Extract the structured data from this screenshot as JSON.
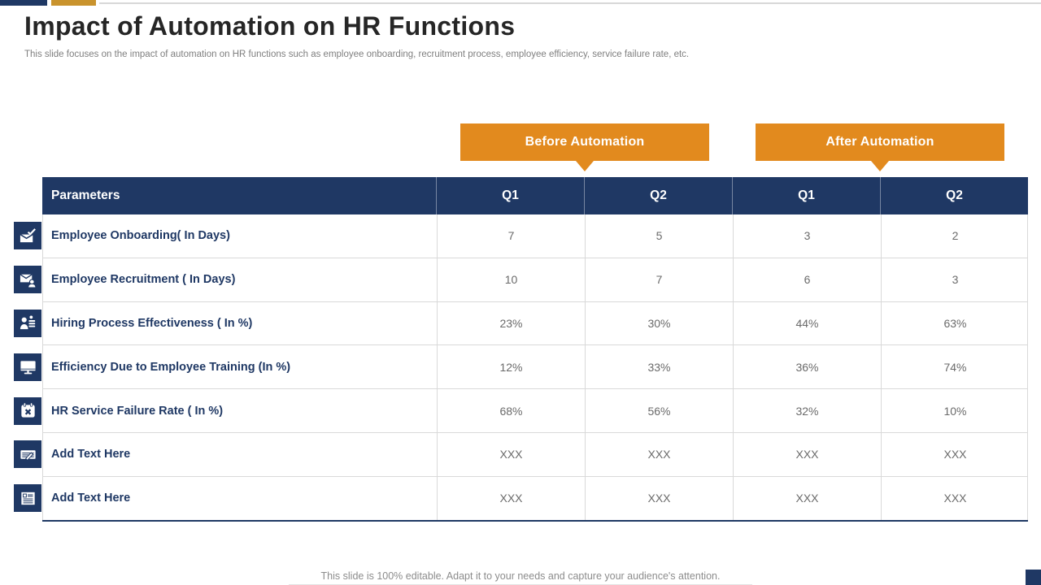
{
  "slide": {
    "title": "Impact of Automation on HR Functions",
    "subtitle": "This slide focuses on the impact of automation on HR functions such as employee onboarding, recruitment process, employee efficiency, service failure rate, etc.",
    "footer": "This slide is 100% editable. Adapt it to your needs and capture your audience's attention."
  },
  "colors": {
    "navy": "#1F3864",
    "orange": "#E28A1E",
    "gold": "#C9932D",
    "grid_line": "#D9D9D9",
    "value_text": "#6A6A6A"
  },
  "callouts": [
    {
      "label": "Before Automation"
    },
    {
      "label": "After Automation"
    }
  ],
  "table": {
    "header": [
      "Parameters",
      "Q1",
      "Q2",
      "Q1",
      "Q2"
    ],
    "rows": [
      {
        "icon": "onboarding-envelope-check-icon",
        "label": "Employee Onboarding( In Days)",
        "values": [
          "7",
          "5",
          "3",
          "2"
        ]
      },
      {
        "icon": "recruitment-envelope-person-icon",
        "label": "Employee Recruitment ( In Days)",
        "values": [
          "10",
          "7",
          "6",
          "3"
        ]
      },
      {
        "icon": "hiring-person-coins-icon",
        "label": "Hiring Process Effectiveness ( In %)",
        "values": [
          "23%",
          "30%",
          "44%",
          "63%"
        ]
      },
      {
        "icon": "training-monitor-icon",
        "label": "Efficiency Due to Employee Training (In %)",
        "values": [
          "12%",
          "33%",
          "36%",
          "74%"
        ]
      },
      {
        "icon": "failure-calendar-x-icon",
        "label": "HR Service Failure Rate ( In %)",
        "values": [
          "68%",
          "56%",
          "32%",
          "10%"
        ]
      },
      {
        "icon": "signature-pen-icon",
        "label": "Add Text Here",
        "values": [
          "XXX",
          "XXX",
          "XXX",
          "XXX"
        ]
      },
      {
        "icon": "document-lines-icon",
        "label": "Add Text Here",
        "values": [
          "XXX",
          "XXX",
          "XXX",
          "XXX"
        ]
      }
    ]
  },
  "chart_data": {
    "type": "table",
    "title": "Impact of Automation on HR Functions",
    "categories": [
      "Before Automation Q1",
      "Before Automation Q2",
      "After Automation Q1",
      "After Automation Q2"
    ],
    "series": [
      {
        "name": "Employee Onboarding( In Days)",
        "values": [
          7,
          5,
          3,
          2
        ]
      },
      {
        "name": "Employee Recruitment ( In Days)",
        "values": [
          10,
          7,
          6,
          3
        ]
      },
      {
        "name": "Hiring Process Effectiveness ( In %)",
        "values": [
          "23%",
          "30%",
          "44%",
          "63%"
        ]
      },
      {
        "name": "Efficiency Due to Employee Training (In %)",
        "values": [
          "12%",
          "33%",
          "36%",
          "74%"
        ]
      },
      {
        "name": "HR Service Failure Rate ( In %)",
        "values": [
          "68%",
          "56%",
          "32%",
          "10%"
        ]
      },
      {
        "name": "Add Text Here",
        "values": [
          "XXX",
          "XXX",
          "XXX",
          "XXX"
        ]
      },
      {
        "name": "Add Text Here",
        "values": [
          "XXX",
          "XXX",
          "XXX",
          "XXX"
        ]
      }
    ]
  }
}
